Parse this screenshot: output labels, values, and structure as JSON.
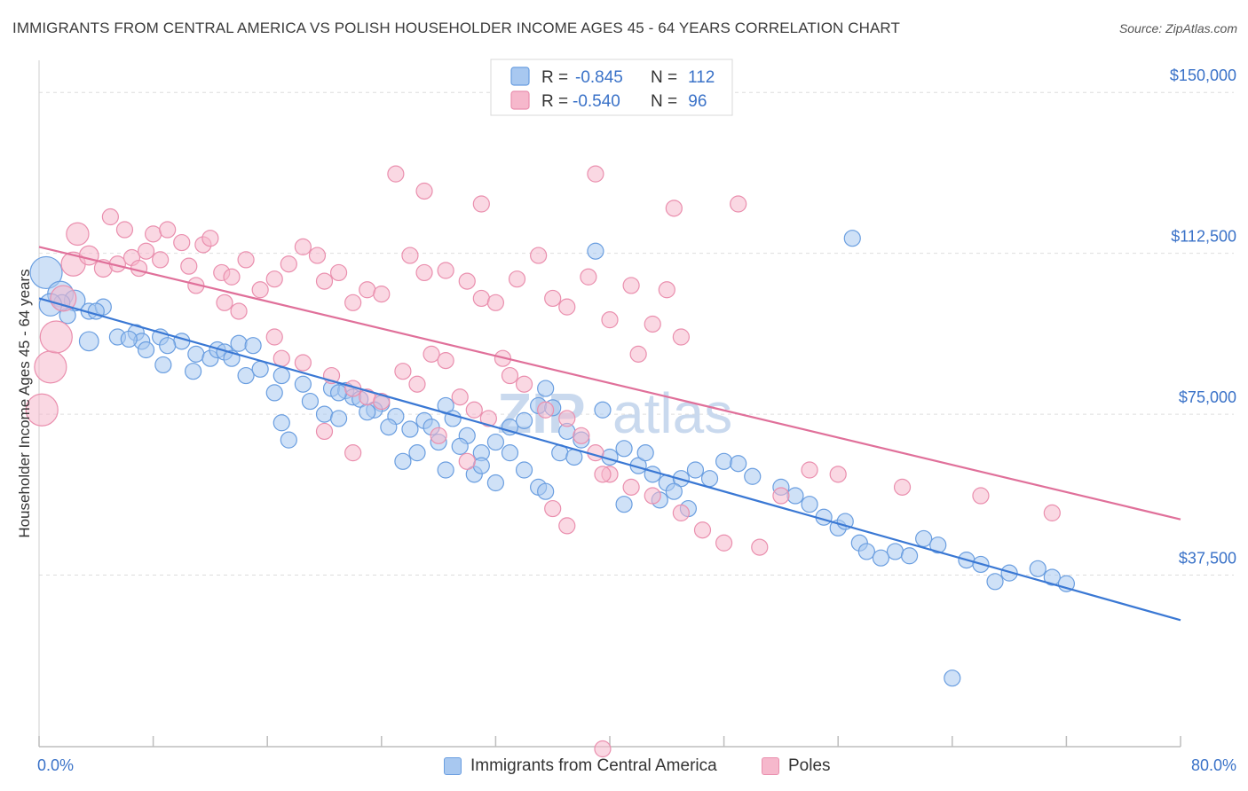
{
  "title": "IMMIGRANTS FROM CENTRAL AMERICA VS POLISH HOUSEHOLDER INCOME AGES 45 - 64 YEARS CORRELATION CHART",
  "source": "Source: ZipAtlas.com",
  "watermark": "ZIPatlas",
  "colors": {
    "blue_fill": "#a8c8f0",
    "blue_stroke": "#6a9ee0",
    "blue_line": "#3a78d4",
    "pink_fill": "#f6b8cc",
    "pink_stroke": "#ea8fae",
    "pink_line": "#e0709a",
    "tick_text": "#3a72c8",
    "grid": "#dddddd"
  },
  "legend": {
    "rows": [
      {
        "r_label": "R =",
        "r_value": "-0.845",
        "n_label": "N =",
        "n_value": "112",
        "series": "blue"
      },
      {
        "r_label": "R =",
        "r_value": "-0.540",
        "n_label": "N =",
        "n_value": " 96",
        "series": "pink"
      }
    ]
  },
  "bottom_legend": [
    {
      "label": "Immigrants from Central America",
      "series": "blue"
    },
    {
      "label": "Poles",
      "series": "pink"
    }
  ],
  "chart_data": {
    "type": "scatter",
    "title": "IMMIGRANTS FROM CENTRAL AMERICA VS POLISH HOUSEHOLDER INCOME AGES 45 - 64 YEARS CORRELATION CHART",
    "xlabel": "",
    "ylabel": "Householder Income Ages 45 - 64 years",
    "xlim": [
      0,
      80
    ],
    "ylim": [
      0,
      155000
    ],
    "x_tick_labels": [
      {
        "value": 0,
        "label": "0.0%"
      },
      {
        "value": 80,
        "label": "80.0%"
      }
    ],
    "y_ticks": [
      {
        "value": 37500,
        "label": "$37,500"
      },
      {
        "value": 75000,
        "label": "$75,000"
      },
      {
        "value": 112500,
        "label": "$112,500"
      },
      {
        "value": 150000,
        "label": "$150,000"
      }
    ],
    "grid": true,
    "series": [
      {
        "name": "Immigrants from Central America",
        "color": "blue",
        "r": -0.845,
        "n": 112,
        "trend": {
          "x": [
            0,
            80
          ],
          "y": [
            102000,
            27000
          ]
        },
        "points": [
          [
            0.5,
            108000,
            2
          ],
          [
            1.5,
            103000,
            1.6
          ],
          [
            2.5,
            101500,
            1.3
          ],
          [
            3.5,
            99000,
            1
          ],
          [
            2,
            98000,
            1
          ],
          [
            1.6,
            101000,
            1
          ],
          [
            0.8,
            100500,
            1.4
          ],
          [
            4.5,
            100000,
            1
          ],
          [
            4,
            99000,
            1
          ],
          [
            3.5,
            92000,
            1.2
          ],
          [
            5.5,
            93000,
            1
          ],
          [
            6.8,
            94000,
            1
          ],
          [
            7.2,
            92000,
            1
          ],
          [
            6.3,
            92500,
            1
          ],
          [
            8.5,
            93000,
            1
          ],
          [
            10,
            92000,
            1
          ],
          [
            9,
            91000,
            1
          ],
          [
            7.5,
            90000,
            1
          ],
          [
            11,
            89000,
            1
          ],
          [
            12,
            88000,
            1
          ],
          [
            12.5,
            90000,
            1
          ],
          [
            13,
            89500,
            1
          ],
          [
            14,
            91500,
            1
          ],
          [
            15,
            91000,
            1
          ],
          [
            13.5,
            88000,
            1
          ],
          [
            8.7,
            86500,
            1
          ],
          [
            10.8,
            85000,
            1
          ],
          [
            14.5,
            84000,
            1
          ],
          [
            15.5,
            85500,
            1
          ],
          [
            17,
            84000,
            1
          ],
          [
            18.5,
            82000,
            1
          ],
          [
            16.5,
            80000,
            1
          ],
          [
            19,
            78000,
            1
          ],
          [
            20.5,
            81000,
            1
          ],
          [
            21.5,
            80500,
            1
          ],
          [
            22,
            79000,
            1
          ],
          [
            21,
            80000,
            1
          ],
          [
            22.5,
            78500,
            1
          ],
          [
            24,
            77500,
            1
          ],
          [
            23.5,
            76000,
            1
          ],
          [
            23,
            75500,
            1
          ],
          [
            20,
            75000,
            1
          ],
          [
            17,
            73000,
            1
          ],
          [
            17.5,
            69000,
            1
          ],
          [
            21,
            74000,
            1
          ],
          [
            25,
            74500,
            1
          ],
          [
            24.5,
            72000,
            1
          ],
          [
            26,
            71500,
            1
          ],
          [
            27,
            73500,
            1
          ],
          [
            27.5,
            72000,
            1
          ],
          [
            28.5,
            77000,
            1
          ],
          [
            29,
            74000,
            1
          ],
          [
            30,
            70000,
            1
          ],
          [
            28,
            68500,
            1
          ],
          [
            26.5,
            66000,
            1
          ],
          [
            25.5,
            64000,
            1
          ],
          [
            29.5,
            67500,
            1
          ],
          [
            31,
            66000,
            1
          ],
          [
            32,
            68500,
            1
          ],
          [
            33,
            72000,
            1
          ],
          [
            34,
            73500,
            1
          ],
          [
            35,
            77000,
            1
          ],
          [
            36,
            76500,
            1
          ],
          [
            37,
            71000,
            1
          ],
          [
            38,
            69000,
            1
          ],
          [
            39.5,
            76000,
            1
          ],
          [
            36.5,
            66000,
            1
          ],
          [
            37.5,
            65000,
            1
          ],
          [
            35,
            58000,
            1
          ],
          [
            35.5,
            57000,
            1
          ],
          [
            34,
            62000,
            1
          ],
          [
            32,
            59000,
            1
          ],
          [
            30.5,
            61000,
            1
          ],
          [
            31,
            63000,
            1
          ],
          [
            28.5,
            62000,
            1
          ],
          [
            33,
            66000,
            1
          ],
          [
            40,
            65000,
            1
          ],
          [
            41,
            67000,
            1
          ],
          [
            42,
            63000,
            1
          ],
          [
            43,
            61000,
            1
          ],
          [
            44,
            59000,
            1
          ],
          [
            45,
            60000,
            1
          ],
          [
            44.5,
            57000,
            1
          ],
          [
            46,
            62000,
            1
          ],
          [
            47,
            60000,
            1
          ],
          [
            48,
            64000,
            1
          ],
          [
            49,
            63500,
            1
          ],
          [
            50,
            60500,
            1
          ],
          [
            52,
            58000,
            1
          ],
          [
            53,
            56000,
            1
          ],
          [
            54,
            54000,
            1
          ],
          [
            55,
            51000,
            1
          ],
          [
            56,
            48500,
            1
          ],
          [
            57.5,
            45000,
            1
          ],
          [
            60,
            43000,
            1
          ],
          [
            61,
            42000,
            1
          ],
          [
            62,
            46000,
            1
          ],
          [
            63,
            44500,
            1
          ],
          [
            65,
            41000,
            1
          ],
          [
            66,
            40000,
            1
          ],
          [
            67,
            36000,
            1
          ],
          [
            68,
            38000,
            1
          ],
          [
            70,
            39000,
            1
          ],
          [
            71,
            37000,
            1
          ],
          [
            72,
            35500,
            1
          ],
          [
            41,
            54000,
            1
          ],
          [
            43.5,
            55000,
            1
          ],
          [
            45.5,
            53000,
            1
          ],
          [
            42.5,
            66000,
            1
          ],
          [
            56.5,
            50000,
            1
          ],
          [
            58,
            43000,
            1
          ],
          [
            59,
            41500,
            1
          ],
          [
            39,
            113000,
            1
          ],
          [
            35.5,
            81000,
            1
          ],
          [
            57,
            116000,
            1
          ],
          [
            64,
            13500,
            1
          ]
        ]
      },
      {
        "name": "Poles",
        "color": "pink",
        "r": -0.54,
        "n": 96,
        "trend": {
          "x": [
            0,
            80
          ],
          "y": [
            114000,
            50500
          ]
        },
        "points": [
          [
            0.2,
            76000,
            2
          ],
          [
            0.8,
            86000,
            2
          ],
          [
            1.2,
            93000,
            2
          ],
          [
            1.7,
            102000,
            1.6
          ],
          [
            2.4,
            110000,
            1.5
          ],
          [
            2.7,
            117000,
            1.4
          ],
          [
            3.5,
            112000,
            1.2
          ],
          [
            4.5,
            109000,
            1.1
          ],
          [
            5.5,
            110000,
            1
          ],
          [
            6.5,
            111500,
            1
          ],
          [
            5,
            121000,
            1
          ],
          [
            6,
            118000,
            1
          ],
          [
            7.5,
            113000,
            1
          ],
          [
            8,
            117000,
            1
          ],
          [
            9,
            118000,
            1
          ],
          [
            10,
            115000,
            1
          ],
          [
            8.5,
            111000,
            1
          ],
          [
            11.5,
            114500,
            1
          ],
          [
            12,
            116000,
            1
          ],
          [
            7,
            109000,
            1
          ],
          [
            10.5,
            109500,
            1
          ],
          [
            11,
            105000,
            1
          ],
          [
            12.8,
            108000,
            1
          ],
          [
            13.5,
            107000,
            1
          ],
          [
            14.5,
            111000,
            1
          ],
          [
            15.5,
            104000,
            1
          ],
          [
            16.5,
            106500,
            1
          ],
          [
            17.5,
            110000,
            1
          ],
          [
            18.5,
            114000,
            1
          ],
          [
            19.5,
            112000,
            1
          ],
          [
            20,
            106000,
            1
          ],
          [
            21,
            108000,
            1
          ],
          [
            22,
            101000,
            1
          ],
          [
            23,
            104000,
            1
          ],
          [
            24,
            103000,
            1
          ],
          [
            26,
            112000,
            1
          ],
          [
            27,
            108000,
            1
          ],
          [
            28.5,
            108500,
            1
          ],
          [
            30,
            106000,
            1
          ],
          [
            31,
            102000,
            1
          ],
          [
            32,
            101000,
            1
          ],
          [
            33.5,
            106500,
            1
          ],
          [
            35,
            112000,
            1
          ],
          [
            36,
            102000,
            1
          ],
          [
            37,
            100000,
            1
          ],
          [
            38.5,
            107000,
            1
          ],
          [
            40,
            97000,
            1
          ],
          [
            41.5,
            105000,
            1
          ],
          [
            43,
            96000,
            1
          ],
          [
            44,
            104000,
            1
          ],
          [
            25,
            131000,
            1
          ],
          [
            27,
            127000,
            1
          ],
          [
            31,
            124000,
            1
          ],
          [
            39,
            131000,
            1
          ],
          [
            44.5,
            123000,
            1
          ],
          [
            49,
            124000,
            1
          ],
          [
            13,
            101000,
            1
          ],
          [
            14,
            99000,
            1
          ],
          [
            16.5,
            93000,
            1
          ],
          [
            17,
            88000,
            1
          ],
          [
            18.5,
            87000,
            1
          ],
          [
            20.5,
            84000,
            1
          ],
          [
            22,
            81000,
            1
          ],
          [
            23,
            79000,
            1
          ],
          [
            24,
            78000,
            1
          ],
          [
            25.5,
            85000,
            1
          ],
          [
            26.5,
            82000,
            1
          ],
          [
            27.5,
            89000,
            1
          ],
          [
            28.5,
            87500,
            1
          ],
          [
            29.5,
            79000,
            1
          ],
          [
            30.5,
            76000,
            1
          ],
          [
            31.5,
            74000,
            1
          ],
          [
            32.5,
            88000,
            1
          ],
          [
            33,
            84000,
            1
          ],
          [
            34,
            82000,
            1
          ],
          [
            35.5,
            76000,
            1
          ],
          [
            37,
            74000,
            1
          ],
          [
            38,
            70000,
            1
          ],
          [
            39,
            66000,
            1
          ],
          [
            40,
            61000,
            1
          ],
          [
            41.5,
            58000,
            1
          ],
          [
            43,
            56000,
            1
          ],
          [
            45,
            52000,
            1
          ],
          [
            46.5,
            48000,
            1
          ],
          [
            48,
            45000,
            1
          ],
          [
            50.5,
            44000,
            1
          ],
          [
            52,
            56000,
            1
          ],
          [
            54,
            62000,
            1
          ],
          [
            56,
            61000,
            1
          ],
          [
            60.5,
            58000,
            1
          ],
          [
            66,
            56000,
            1
          ],
          [
            71,
            52000,
            1
          ],
          [
            39.5,
            61000,
            1
          ],
          [
            42,
            89000,
            1
          ],
          [
            45,
            93000,
            1
          ],
          [
            22,
            66000,
            1
          ],
          [
            28,
            70000,
            1
          ],
          [
            20,
            71000,
            1
          ],
          [
            36,
            53000,
            1
          ],
          [
            37,
            49000,
            1
          ],
          [
            30,
            64000,
            1
          ],
          [
            39.5,
            -3000,
            1
          ]
        ]
      }
    ]
  }
}
